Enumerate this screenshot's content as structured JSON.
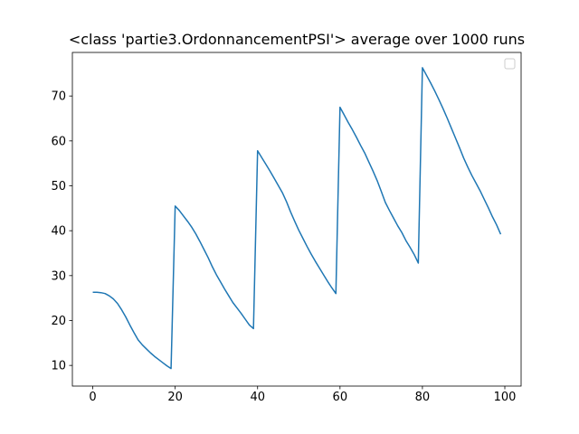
{
  "chart_data": {
    "type": "line",
    "title": "<class 'partie3.OrdonnancementPSI'> average over 1000 runs",
    "x": [
      0,
      1,
      2,
      3,
      4,
      5,
      6,
      7,
      8,
      9,
      10,
      11,
      12,
      13,
      14,
      15,
      16,
      17,
      18,
      19,
      20,
      21,
      22,
      23,
      24,
      25,
      26,
      27,
      28,
      29,
      30,
      31,
      32,
      33,
      34,
      35,
      36,
      37,
      38,
      39,
      40,
      41,
      42,
      43,
      44,
      45,
      46,
      47,
      48,
      49,
      50,
      51,
      52,
      53,
      54,
      55,
      56,
      57,
      58,
      59,
      60,
      61,
      62,
      63,
      64,
      65,
      66,
      67,
      68,
      69,
      70,
      71,
      72,
      73,
      74,
      75,
      76,
      77,
      78,
      79,
      80,
      81,
      82,
      83,
      84,
      85,
      86,
      87,
      88,
      89,
      90,
      91,
      92,
      93,
      94,
      95,
      96,
      97,
      98,
      99
    ],
    "series": [
      {
        "color": "#1f77b4",
        "values": [
          26.3,
          26.3,
          26.2,
          26.0,
          25.5,
          24.8,
          23.8,
          22.4,
          20.8,
          19.0,
          17.3,
          15.7,
          14.6,
          13.7,
          12.8,
          12.0,
          11.3,
          10.6,
          9.9,
          9.3,
          45.5,
          44.5,
          43.3,
          42.1,
          40.8,
          39.3,
          37.6,
          35.8,
          34.0,
          32.0,
          30.2,
          28.6,
          27.0,
          25.5,
          24.0,
          22.8,
          21.6,
          20.3,
          19.0,
          18.2,
          57.8,
          56.3,
          54.8,
          53.3,
          51.7,
          50.1,
          48.5,
          46.5,
          44.2,
          42.1,
          40.1,
          38.3,
          36.5,
          34.8,
          33.2,
          31.7,
          30.2,
          28.7,
          27.3,
          26.0,
          67.5,
          65.8,
          64.1,
          62.5,
          60.8,
          59.0,
          57.3,
          55.3,
          53.3,
          51.2,
          48.8,
          46.3,
          44.5,
          42.8,
          41.1,
          39.6,
          37.8,
          36.3,
          34.7,
          32.8,
          76.3,
          74.6,
          72.9,
          71.1,
          69.2,
          67.2,
          65.1,
          62.9,
          60.7,
          58.5,
          56.2,
          54.2,
          52.3,
          50.6,
          48.9,
          47.0,
          45.1,
          43.1,
          41.3,
          39.2
        ]
      }
    ],
    "xlim": [
      -4.95,
      103.95
    ],
    "ylim": [
      5.4,
      79.7
    ],
    "xticks": [
      0,
      20,
      40,
      60,
      80,
      100
    ],
    "yticks": [
      10,
      20,
      30,
      40,
      50,
      60,
      70
    ]
  }
}
